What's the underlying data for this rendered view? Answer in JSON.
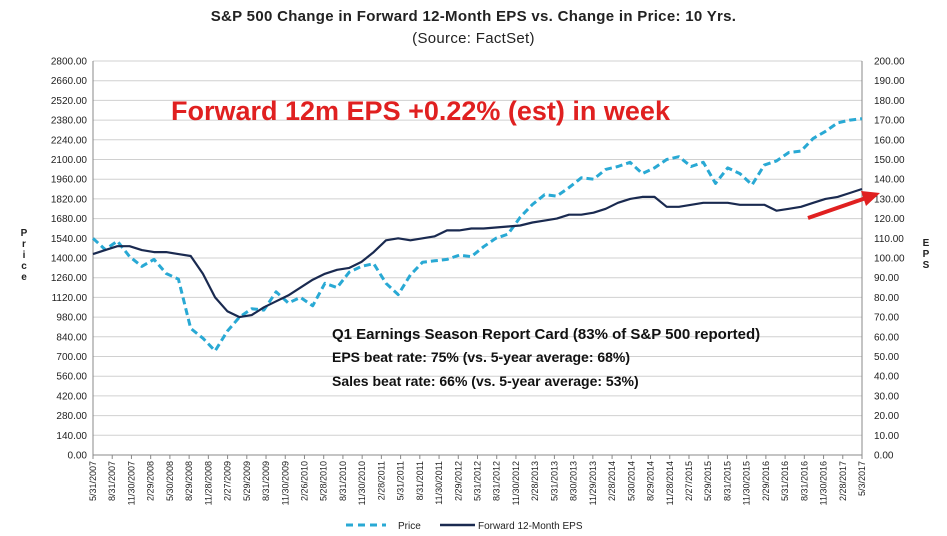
{
  "chart_data": {
    "type": "line",
    "title": "S&P 500 Change in Forward 12-Month EPS vs. Change in Price: 10 Yrs.",
    "subtitle": "(Source: FactSet)",
    "ylabel_left": "Price",
    "ylabel_right": "EPS",
    "ylim_left": [
      0,
      2800
    ],
    "ylim_right": [
      0,
      200
    ],
    "yticks_left": [
      "0.00",
      "140.00",
      "280.00",
      "420.00",
      "560.00",
      "700.00",
      "840.00",
      "980.00",
      "1120.00",
      "1260.00",
      "1400.00",
      "1540.00",
      "1680.00",
      "1820.00",
      "1960.00",
      "2100.00",
      "2240.00",
      "2380.00",
      "2520.00",
      "2660.00",
      "2800.00"
    ],
    "yticks_right": [
      "0.00",
      "10.00",
      "20.00",
      "30.00",
      "40.00",
      "50.00",
      "60.00",
      "70.00",
      "80.00",
      "90.00",
      "100.00",
      "110.00",
      "120.00",
      "130.00",
      "140.00",
      "150.00",
      "160.00",
      "170.00",
      "180.00",
      "190.00",
      "200.00"
    ],
    "xticks": [
      "5/31/2007",
      "8/31/2007",
      "11/30/2007",
      "2/29/2008",
      "5/30/2008",
      "8/29/2008",
      "11/28/2008",
      "2/27/2009",
      "5/29/2009",
      "8/31/2009",
      "11/30/2009",
      "2/26/2010",
      "5/28/2010",
      "8/31/2010",
      "11/30/2010",
      "2/28/2011",
      "5/31/2011",
      "8/31/2011",
      "11/30/2011",
      "2/29/2012",
      "5/31/2012",
      "8/31/2012",
      "11/30/2012",
      "2/28/2013",
      "5/31/2013",
      "8/30/2013",
      "11/29/2013",
      "2/28/2014",
      "5/30/2014",
      "8/29/2014",
      "11/28/2014",
      "2/27/2015",
      "5/29/2015",
      "8/31/2015",
      "11/30/2015",
      "2/29/2016",
      "5/31/2016",
      "8/31/2016",
      "11/30/2016",
      "2/28/2017",
      "5/3/2017"
    ],
    "grid": true,
    "legend_position": "bottom",
    "series": [
      {
        "name": "Price",
        "axis": "left",
        "color": "#29a9d4",
        "dash": true,
        "values": [
          1540,
          1460,
          1520,
          1410,
          1340,
          1390,
          1290,
          1250,
          900,
          830,
          740,
          880,
          980,
          1040,
          1030,
          1160,
          1080,
          1120,
          1060,
          1220,
          1190,
          1300,
          1340,
          1360,
          1220,
          1140,
          1280,
          1370,
          1380,
          1390,
          1420,
          1410,
          1480,
          1540,
          1570,
          1690,
          1780,
          1850,
          1840,
          1900,
          1970,
          1960,
          2030,
          2050,
          2080,
          2000,
          2040,
          2100,
          2120,
          2050,
          2080,
          1930,
          2040,
          2000,
          1920,
          2060,
          2090,
          2150,
          2160,
          2250,
          2300,
          2360,
          2380,
          2390
        ]
      },
      {
        "name": "Forward 12-Month EPS",
        "axis": "right",
        "color": "#1a2a50",
        "dash": false,
        "values": [
          102,
          104,
          106,
          106,
          104,
          103,
          103,
          102,
          101,
          92,
          80,
          73,
          70,
          71,
          75,
          78,
          81,
          85,
          89,
          92,
          94,
          95,
          98,
          103,
          109,
          110,
          109,
          110,
          111,
          114,
          114,
          115,
          115,
          115.5,
          116,
          116.5,
          118,
          119,
          120,
          122,
          122,
          123,
          125,
          128,
          130,
          131,
          131,
          126,
          126,
          127,
          128,
          128,
          128,
          127,
          127,
          127,
          124,
          125,
          126,
          128,
          130,
          131,
          133,
          135
        ]
      }
    ],
    "annotations": {
      "red_text": "Forward 12m EPS +0.22% (est) in week",
      "report_card_title": "Q1 Earnings Season Report Card (83% of S&P 500 reported)",
      "eps_beat": "EPS beat rate: 75% (vs. 5-year average: 68%)",
      "sales_beat": "Sales beat rate: 66% (vs. 5-year average: 53%)",
      "arrow_color": "#e02020"
    }
  }
}
